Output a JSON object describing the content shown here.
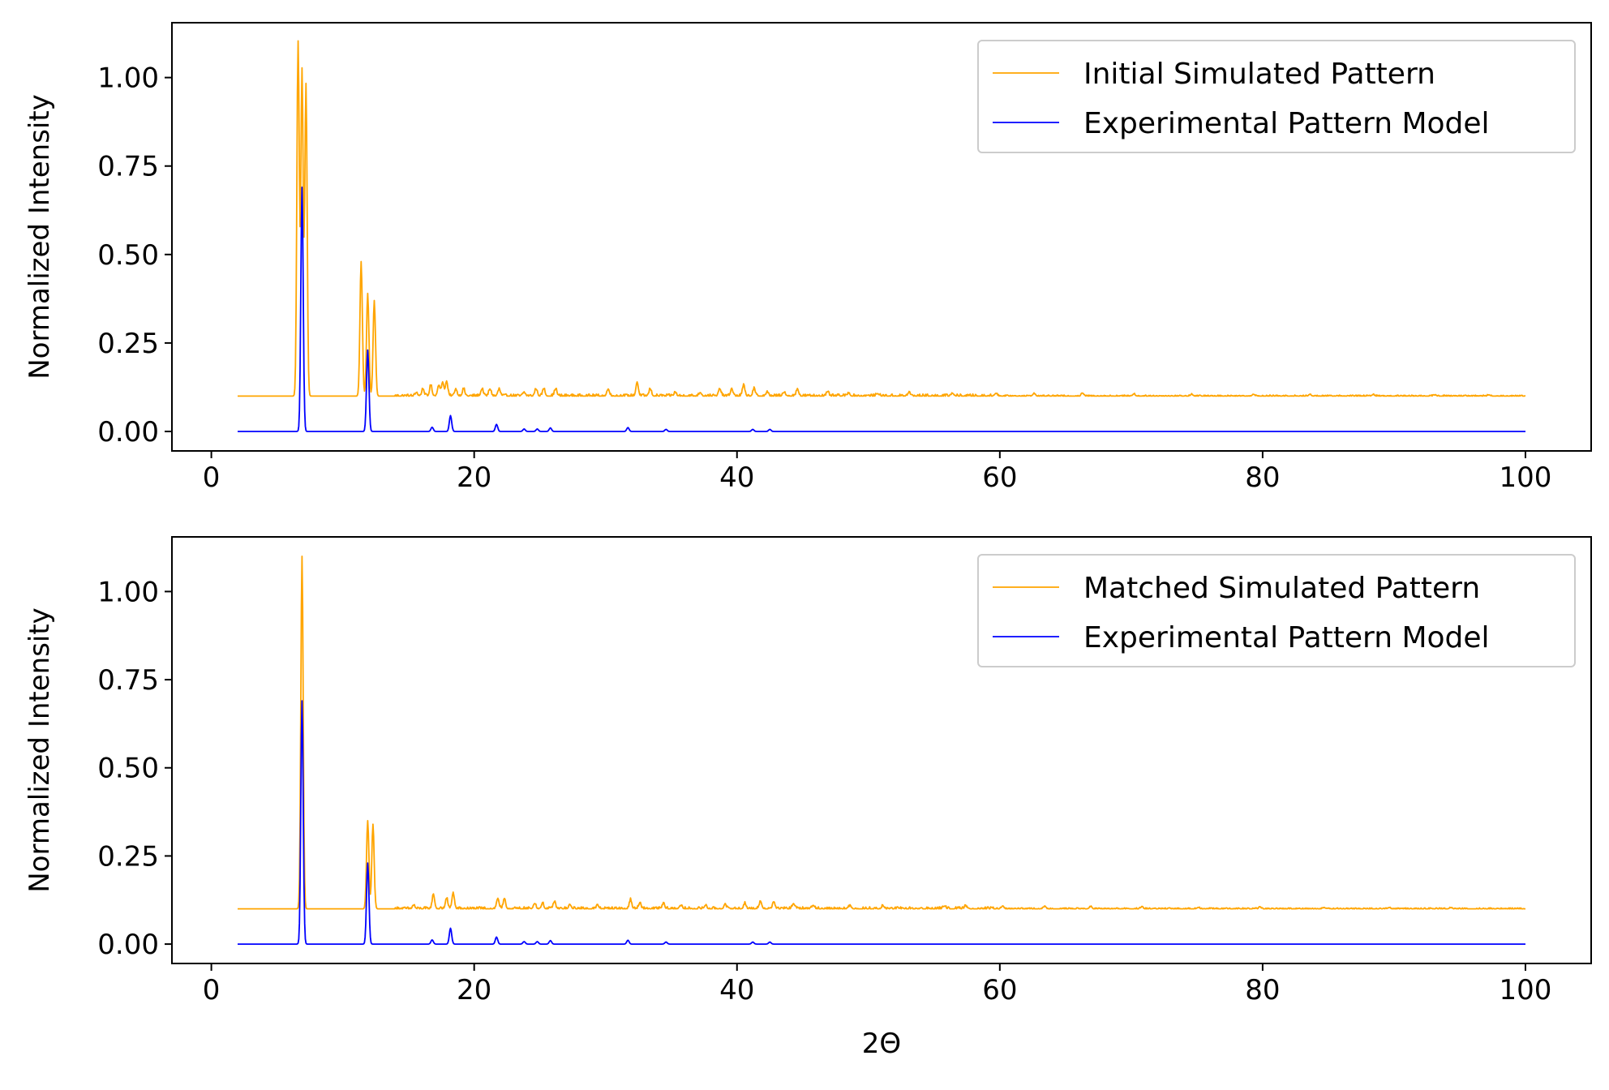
{
  "chart_data": [
    {
      "type": "line",
      "xlabel": "",
      "ylabel": "Normalized Intensity",
      "xlim": [
        -3,
        105
      ],
      "ylim": [
        -0.055,
        1.155
      ],
      "xticks": [
        0,
        20,
        40,
        60,
        80,
        100
      ],
      "xtick_labels": [
        "0",
        "20",
        "40",
        "60",
        "80",
        "100"
      ],
      "yticks": [
        0.0,
        0.25,
        0.5,
        0.75,
        1.0
      ],
      "ytick_labels": [
        "0.00",
        "0.25",
        "0.50",
        "0.75",
        "1.00"
      ],
      "grid": false,
      "legend_position": "top-right",
      "series": [
        {
          "name": "Initial Simulated Pattern",
          "color": "#ffa500",
          "baseline": 0.1,
          "x_range": [
            2,
            100
          ],
          "peaks": [
            [
              6.6,
              1.1
            ],
            [
              6.9,
              1.02
            ],
            [
              7.2,
              0.98
            ],
            [
              11.4,
              0.48
            ],
            [
              11.9,
              0.39
            ],
            [
              12.4,
              0.37
            ],
            [
              15.6,
              0.11
            ],
            [
              16.1,
              0.12
            ],
            [
              16.7,
              0.13
            ],
            [
              17.3,
              0.13
            ],
            [
              17.6,
              0.14
            ],
            [
              17.9,
              0.14
            ],
            [
              18.6,
              0.12
            ],
            [
              19.2,
              0.12
            ],
            [
              20.6,
              0.12
            ],
            [
              21.2,
              0.12
            ],
            [
              21.9,
              0.12
            ],
            [
              23.8,
              0.11
            ],
            [
              24.7,
              0.12
            ],
            [
              25.3,
              0.12
            ],
            [
              26.2,
              0.12
            ],
            [
              30.2,
              0.12
            ],
            [
              32.4,
              0.14
            ],
            [
              33.4,
              0.12
            ],
            [
              35.3,
              0.11
            ],
            [
              37.2,
              0.11
            ],
            [
              38.7,
              0.12
            ],
            [
              39.6,
              0.12
            ],
            [
              40.5,
              0.13
            ],
            [
              41.3,
              0.12
            ],
            [
              42.3,
              0.11
            ],
            [
              43.6,
              0.11
            ],
            [
              44.6,
              0.12
            ],
            [
              46.9,
              0.11
            ],
            [
              48.5,
              0.108
            ],
            [
              50.7,
              0.107
            ],
            [
              53.1,
              0.11
            ],
            [
              56.4,
              0.108
            ],
            [
              59.7,
              0.108
            ],
            [
              62.6,
              0.107
            ],
            [
              66.3,
              0.108
            ],
            [
              70.2,
              0.106
            ],
            [
              74.6,
              0.105
            ],
            [
              79.3,
              0.105
            ],
            [
              83.6,
              0.104
            ],
            [
              88.4,
              0.104
            ],
            [
              93.1,
              0.103
            ],
            [
              97.2,
              0.103
            ]
          ],
          "noise": [
            [
              14,
              60,
              0.006
            ],
            [
              60,
              100,
              0.003
            ]
          ]
        },
        {
          "name": "Experimental Pattern Model",
          "color": "#0000ff",
          "baseline": 0.0,
          "x_range": [
            2,
            100
          ],
          "peaks": [
            [
              6.9,
              0.69
            ],
            [
              11.9,
              0.23
            ],
            [
              16.8,
              0.012
            ],
            [
              18.2,
              0.045
            ],
            [
              21.7,
              0.02
            ],
            [
              23.8,
              0.007
            ],
            [
              24.8,
              0.007
            ],
            [
              25.8,
              0.01
            ],
            [
              31.7,
              0.011
            ],
            [
              34.6,
              0.006
            ],
            [
              41.2,
              0.006
            ],
            [
              42.5,
              0.006
            ]
          ],
          "noise": []
        }
      ]
    },
    {
      "type": "line",
      "xlabel": "2Θ",
      "ylabel": "Normalized Intensity",
      "xlim": [
        -3,
        105
      ],
      "ylim": [
        -0.055,
        1.155
      ],
      "xticks": [
        0,
        20,
        40,
        60,
        80,
        100
      ],
      "xtick_labels": [
        "0",
        "20",
        "40",
        "60",
        "80",
        "100"
      ],
      "yticks": [
        0.0,
        0.25,
        0.5,
        0.75,
        1.0
      ],
      "ytick_labels": [
        "0.00",
        "0.25",
        "0.50",
        "0.75",
        "1.00"
      ],
      "grid": false,
      "legend_position": "top-right",
      "series": [
        {
          "name": "Matched Simulated Pattern",
          "color": "#ffa500",
          "baseline": 0.1,
          "x_range": [
            2,
            100
          ],
          "peaks": [
            [
              6.9,
              1.1
            ],
            [
              11.9,
              0.35
            ],
            [
              12.3,
              0.34
            ],
            [
              15.4,
              0.11
            ],
            [
              16.9,
              0.14
            ],
            [
              17.9,
              0.13
            ],
            [
              18.4,
              0.145
            ],
            [
              21.8,
              0.13
            ],
            [
              22.3,
              0.125
            ],
            [
              24.6,
              0.115
            ],
            [
              25.2,
              0.115
            ],
            [
              26.1,
              0.12
            ],
            [
              27.3,
              0.11
            ],
            [
              29.4,
              0.11
            ],
            [
              31.9,
              0.125
            ],
            [
              32.6,
              0.115
            ],
            [
              34.4,
              0.115
            ],
            [
              35.7,
              0.11
            ],
            [
              37.6,
              0.11
            ],
            [
              39.1,
              0.11
            ],
            [
              40.6,
              0.115
            ],
            [
              41.8,
              0.12
            ],
            [
              42.8,
              0.12
            ],
            [
              44.3,
              0.115
            ],
            [
              45.8,
              0.11
            ],
            [
              48.6,
              0.108
            ],
            [
              51.1,
              0.107
            ],
            [
              55.8,
              0.108
            ],
            [
              57.4,
              0.107
            ],
            [
              60.2,
              0.107
            ],
            [
              63.4,
              0.106
            ],
            [
              66.9,
              0.106
            ],
            [
              70.8,
              0.105
            ],
            [
              75.1,
              0.104
            ],
            [
              79.8,
              0.104
            ],
            [
              84.7,
              0.103
            ],
            [
              89.6,
              0.103
            ],
            [
              94.3,
              0.103
            ]
          ],
          "noise": [
            [
              14,
              60,
              0.006
            ],
            [
              60,
              100,
              0.003
            ]
          ]
        },
        {
          "name": "Experimental Pattern Model",
          "color": "#0000ff",
          "baseline": 0.0,
          "x_range": [
            2,
            100
          ],
          "peaks": [
            [
              6.9,
              0.69
            ],
            [
              11.9,
              0.23
            ],
            [
              16.8,
              0.012
            ],
            [
              18.2,
              0.045
            ],
            [
              21.7,
              0.02
            ],
            [
              23.8,
              0.007
            ],
            [
              24.8,
              0.007
            ],
            [
              25.8,
              0.01
            ],
            [
              31.7,
              0.011
            ],
            [
              34.6,
              0.006
            ],
            [
              41.2,
              0.006
            ],
            [
              42.5,
              0.006
            ]
          ],
          "noise": []
        }
      ]
    }
  ]
}
